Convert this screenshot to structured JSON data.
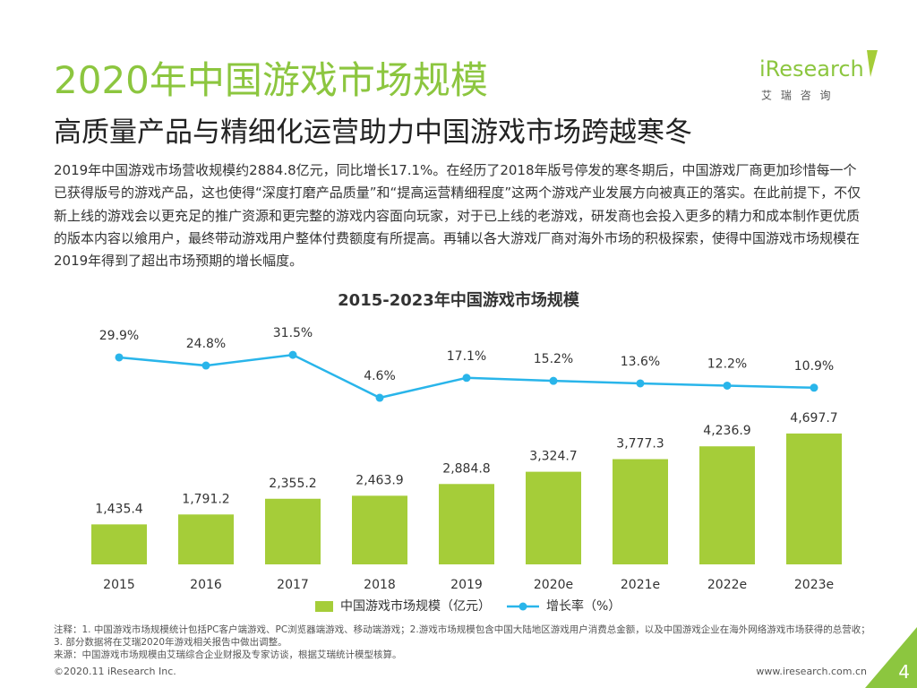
{
  "header": {
    "title": "2020年中国游戏市场规模",
    "subtitle": "高质量产品与精细化运营助力中国游戏市场跨越寒冬",
    "logo": "iResearch",
    "logo_sub": "艾 瑞 咨 询"
  },
  "body": "2019年中国游戏市场营收规模约2884.8亿元，同比增长17.1%。在经历了2018年版号停发的寒冬期后，中国游戏厂商更加珍惜每一个已获得版号的游戏产品，这也使得“深度打磨产品质量”和“提高运营精细程度”这两个游戏产业发展方向被真正的落实。在此前提下，不仅新上线的游戏会以更充足的推广资源和更完整的游戏内容面向玩家，对于已上线的老游戏，研发商也会投入更多的精力和成本制作更优质的版本内容以飨用户，最终带动游戏用户整体付费额度有所提高。再辅以各大游戏厂商对海外市场的积极探索，使得中国游戏市场规模在2019年得到了超出市场预期的增长幅度。",
  "chart_data": {
    "type": "combo",
    "title": "2015-2023年中国游戏市场规模",
    "categories": [
      "2015",
      "2016",
      "2017",
      "2018",
      "2019",
      "2020e",
      "2021e",
      "2022e",
      "2023e"
    ],
    "series": [
      {
        "name": "中国游戏市场规模（亿元）",
        "type": "bar",
        "color": "#a5cd39",
        "values": [
          1435.4,
          1791.2,
          2355.2,
          2463.9,
          2884.8,
          3324.7,
          3777.3,
          4236.9,
          4697.7
        ],
        "value_labels": [
          "1,435.4",
          "1,791.2",
          "2,355.2",
          "2,463.9",
          "2,884.8",
          "3,324.7",
          "3,777.3",
          "4,236.9",
          "4,697.7"
        ]
      },
      {
        "name": "增长率（%）",
        "type": "line",
        "axis": "y2",
        "color": "#29b5ea",
        "values": [
          29.9,
          24.8,
          31.5,
          4.6,
          17.1,
          15.2,
          13.6,
          12.2,
          10.9
        ],
        "value_labels": [
          "29.9%",
          "24.8%",
          "31.5%",
          "4.6%",
          "17.1%",
          "15.2%",
          "13.6%",
          "12.2%",
          "10.9%"
        ]
      }
    ]
  },
  "notes": [
    "注释：1. 中国游戏市场规模统计包括PC客户端游戏、PC浏览器端游戏、移动端游戏；2.游戏市场规模包含中国大陆地区游戏用户消费总金额，以及中国游戏企业在海外网络游戏市场获得的总营收；3. 部分数据将在艾瑞2020年游戏相关报告中做出调整。",
    "来源：中国游戏市场规模由艾瑞综合企业财报及专家访谈，根据艾瑞统计模型核算。"
  ],
  "footer": {
    "copyright": "©2020.11 iResearch Inc.",
    "site": "www.iresearch.com.cn",
    "page": "4"
  }
}
